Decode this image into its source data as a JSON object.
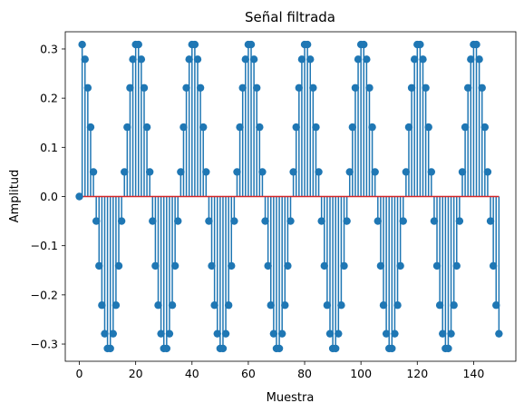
{
  "chart_data": {
    "type": "stem",
    "title": "Señal filtrada",
    "xlabel": "Muestra",
    "ylabel": "Amplitud",
    "xlim": [
      -5,
      155
    ],
    "ylim": [
      -0.335,
      0.335
    ],
    "xticks": [
      0,
      20,
      40,
      60,
      80,
      100,
      120,
      140
    ],
    "yticks": [
      -0.3,
      -0.2,
      -0.1,
      0.0,
      0.1,
      0.2,
      0.3
    ],
    "ytick_labels": [
      "−0.3",
      "−0.2",
      "−0.1",
      "0.0",
      "0.1",
      "0.2",
      "0.3"
    ],
    "baseline": 0,
    "colors": {
      "stem": "#1f77b4",
      "baseline": "#d62728"
    },
    "x_start": 0,
    "values": [
      0.0,
      0.309,
      0.279,
      0.221,
      0.141,
      0.05,
      -0.05,
      -0.141,
      -0.221,
      -0.279,
      -0.309,
      -0.309,
      -0.279,
      -0.221,
      -0.141,
      -0.05,
      0.05,
      0.141,
      0.221,
      0.279,
      0.309,
      0.309,
      0.279,
      0.221,
      0.141,
      0.05,
      -0.05,
      -0.141,
      -0.221,
      -0.279,
      -0.309,
      -0.309,
      -0.279,
      -0.221,
      -0.141,
      -0.05,
      0.05,
      0.141,
      0.221,
      0.279,
      0.309,
      0.309,
      0.279,
      0.221,
      0.141,
      0.05,
      -0.05,
      -0.141,
      -0.221,
      -0.279,
      -0.309,
      -0.309,
      -0.279,
      -0.221,
      -0.141,
      -0.05,
      0.05,
      0.141,
      0.221,
      0.279,
      0.309,
      0.309,
      0.279,
      0.221,
      0.141,
      0.05,
      -0.05,
      -0.141,
      -0.221,
      -0.279,
      -0.309,
      -0.309,
      -0.279,
      -0.221,
      -0.141,
      -0.05,
      0.05,
      0.141,
      0.221,
      0.279,
      0.309,
      0.309,
      0.279,
      0.221,
      0.141,
      0.05,
      -0.05,
      -0.141,
      -0.221,
      -0.279,
      -0.309,
      -0.309,
      -0.279,
      -0.221,
      -0.141,
      -0.05,
      0.05,
      0.141,
      0.221,
      0.279,
      0.309,
      0.309,
      0.279,
      0.221,
      0.141,
      0.05,
      -0.05,
      -0.141,
      -0.221,
      -0.279,
      -0.309,
      -0.309,
      -0.279,
      -0.221,
      -0.141,
      -0.05,
      0.05,
      0.141,
      0.221,
      0.279,
      0.309,
      0.309,
      0.279,
      0.221,
      0.141,
      0.05,
      -0.05,
      -0.141,
      -0.221,
      -0.279,
      -0.309,
      -0.309,
      -0.279,
      -0.221,
      -0.141,
      -0.05,
      0.05,
      0.141,
      0.221,
      0.279,
      0.309,
      0.309,
      0.279,
      0.221,
      0.141,
      0.05,
      -0.05,
      -0.141,
      -0.221,
      -0.279
    ]
  }
}
